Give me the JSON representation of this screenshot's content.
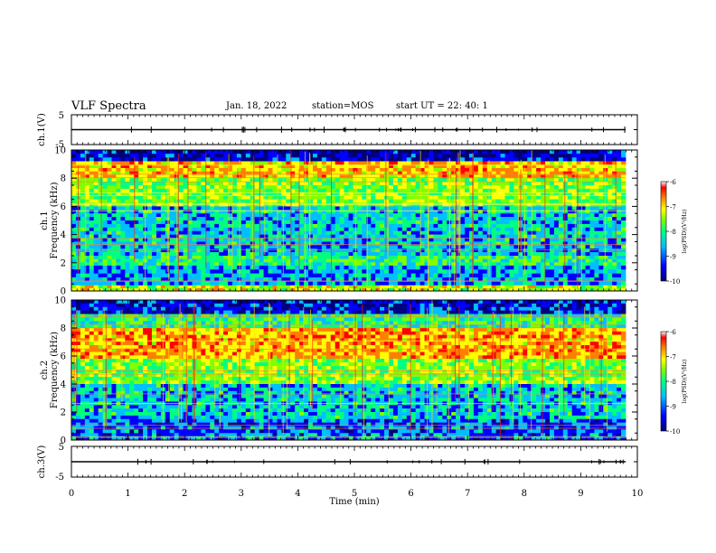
{
  "header": {
    "title": "VLF Spectra",
    "date": "Jan. 18, 2022",
    "station": "station=MOS",
    "start_ut": "start UT =  22: 40: 1"
  },
  "chart_data": [
    {
      "type": "line",
      "panel": "ch1-waveform",
      "ylabel": "ch.1(V)",
      "ylim": [
        -5,
        5
      ],
      "yticks": [
        "5",
        "-5"
      ],
      "baseline": 0
    },
    {
      "type": "heatmap",
      "panel": "ch1-spectrogram",
      "ylabel_line1": "ch.1",
      "ylabel_line2": "Frequency (kHz)",
      "ylim": [
        0,
        10
      ],
      "xlim": [
        0,
        9.8
      ],
      "yticks": [
        "0",
        "2",
        "4",
        "6",
        "8",
        "10"
      ],
      "colorbar": {
        "label": "log(PSD)(V²/Hz)",
        "range": [
          -10,
          -6
        ],
        "ticks": [
          "-6",
          "-7",
          "-8",
          "-9",
          "-10"
        ]
      },
      "bands": [
        {
          "f_low": 9.2,
          "f_high": 10.0,
          "level": -9.5
        },
        {
          "f_low": 8.0,
          "f_high": 9.2,
          "level": -7.0
        },
        {
          "f_low": 6.0,
          "f_high": 8.0,
          "level": -7.8
        },
        {
          "f_low": 2.5,
          "f_high": 6.0,
          "level": -8.6
        },
        {
          "f_low": 1.8,
          "f_high": 2.5,
          "level": -8.2
        },
        {
          "f_low": 0.4,
          "f_high": 1.8,
          "level": -8.8
        },
        {
          "f_low": 0.0,
          "f_high": 0.4,
          "level": -7.5
        }
      ]
    },
    {
      "type": "heatmap",
      "panel": "ch2-spectrogram",
      "ylabel_line1": "ch.2",
      "ylabel_line2": "Frequency (kHz)",
      "ylim": [
        0,
        10
      ],
      "xlim": [
        0,
        9.8
      ],
      "yticks": [
        "0",
        "2",
        "4",
        "6",
        "8",
        "10"
      ],
      "colorbar": {
        "label": "log(PSD)(V²/Hz)",
        "range": [
          -10,
          -6
        ],
        "ticks": [
          "-6",
          "-7",
          "-8",
          "-9",
          "-10"
        ]
      },
      "bands": [
        {
          "f_low": 9.0,
          "f_high": 10.0,
          "level": -9.4
        },
        {
          "f_low": 8.0,
          "f_high": 9.0,
          "level": -8.2
        },
        {
          "f_low": 5.8,
          "f_high": 8.0,
          "level": -6.9
        },
        {
          "f_low": 4.0,
          "f_high": 5.8,
          "level": -7.8
        },
        {
          "f_low": 1.5,
          "f_high": 4.0,
          "level": -8.6
        },
        {
          "f_low": 0.0,
          "f_high": 1.5,
          "level": -9.0
        }
      ]
    },
    {
      "type": "line",
      "panel": "ch3-waveform",
      "ylabel": "ch.3(V)",
      "ylim": [
        -5,
        5
      ],
      "yticks": [
        "5",
        "-5"
      ],
      "baseline": 0,
      "xlabel": "Time (min)",
      "xlim": [
        0,
        10
      ],
      "xticks": [
        "0",
        "1",
        "2",
        "3",
        "4",
        "5",
        "6",
        "7",
        "8",
        "9",
        "10"
      ]
    }
  ],
  "colors": {
    "scale": [
      "#00007f",
      "#0000ff",
      "#00bfff",
      "#00ff80",
      "#7fff00",
      "#ffff00",
      "#ff7f00",
      "#ff0000",
      "#ffffff"
    ]
  }
}
